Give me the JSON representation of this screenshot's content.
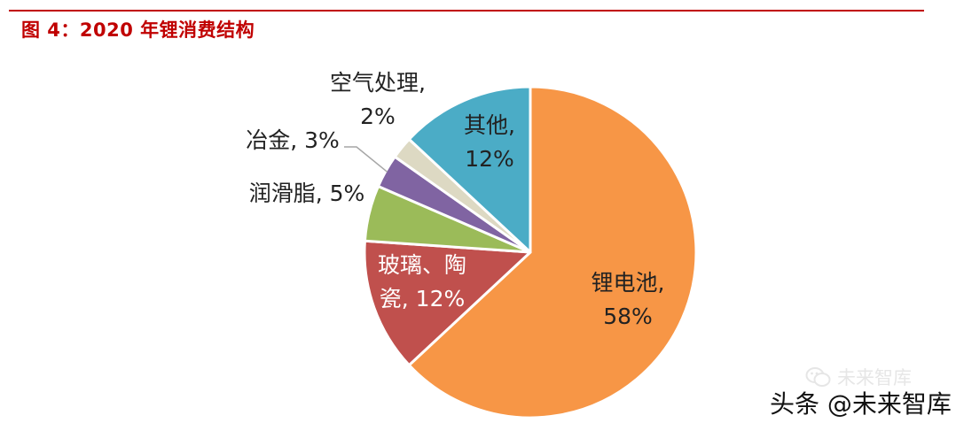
{
  "figure": {
    "title": "图 4：2020 年锂消费结构",
    "accent_color": "#c00000"
  },
  "chart_data": {
    "type": "pie",
    "start_angle_deg": 0,
    "direction": "clockwise",
    "slices": [
      {
        "name": "锂电池",
        "value": 58,
        "label_lines": [
          "锂电池,",
          "58%"
        ],
        "color": "#f79646",
        "label_color": "#222222",
        "label_inside": true
      },
      {
        "name": "玻璃、陶瓷",
        "value": 12,
        "label_lines": [
          "玻璃、陶",
          "瓷, 12%"
        ],
        "color": "#c0504d",
        "label_color": "#ffffff",
        "label_inside": true
      },
      {
        "name": "润滑脂",
        "value": 5,
        "label_lines": [
          "润滑脂, 5%"
        ],
        "color": "#9bbb59",
        "label_color": "#222222",
        "label_inside": false
      },
      {
        "name": "冶金",
        "value": 3,
        "label_lines": [
          "冶金, 3%"
        ],
        "color": "#8064a2",
        "label_color": "#222222",
        "label_inside": false,
        "leader_line": true
      },
      {
        "name": "空气处理",
        "value": 2,
        "label_lines": [
          "空气处理,",
          "2%"
        ],
        "color": "#ddd9c3",
        "label_color": "#222222",
        "label_inside": false
      },
      {
        "name": "其他",
        "value": 12,
        "label_lines": [
          "其他,",
          "12%"
        ],
        "color": "#4bacc6",
        "label_color": "#222222",
        "label_inside": true
      }
    ]
  },
  "watermark": {
    "small_text": "未来智库",
    "big_text": "头条 @未来智库",
    "icon": "wechat-icon"
  }
}
